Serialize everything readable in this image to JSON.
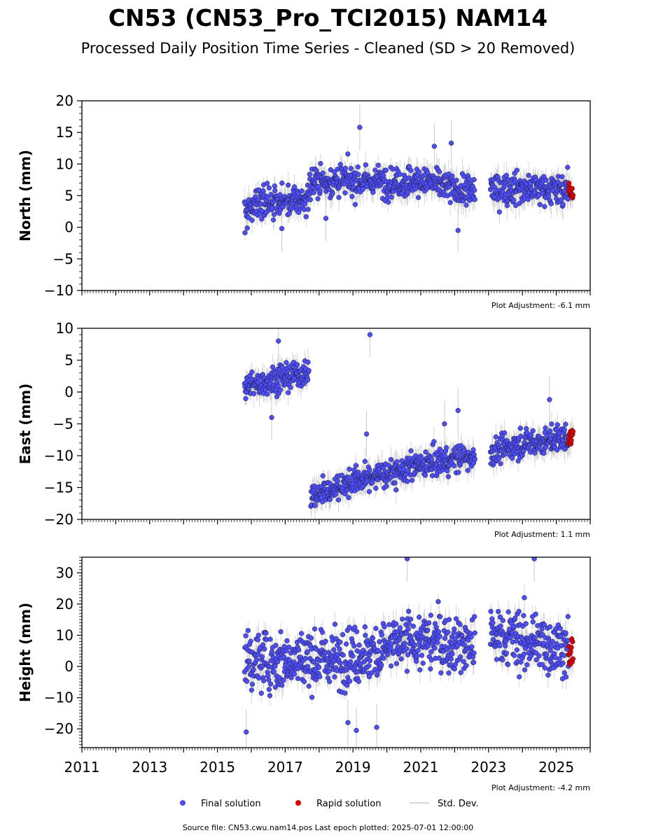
{
  "page": {
    "title": "CN53 (CN53_Pro_TCI2015) NAM14",
    "subtitle": "Processed Daily Position Time Series - Cleaned (SD > 20 Removed)",
    "source": "Source file: CN53.cwu.nam14.pos  Last epoch plotted: 2025-07-01 12:00:00"
  },
  "legend": [
    {
      "label": "Final solution",
      "color": "#4d4dff",
      "marker": "circle"
    },
    {
      "label": "Rapid solution",
      "color": "#e00000",
      "marker": "circle"
    },
    {
      "label": "Std. Dev.",
      "color": "#c8c8c8",
      "marker": "line"
    }
  ],
  "colors": {
    "final": "#4d4dff",
    "rapid": "#e00000",
    "std_dev": "#b4b4b4",
    "marker_edge": "#1a1a1a"
  },
  "chart_data": [
    {
      "type": "scatter",
      "panel": "north",
      "ylabel": "North (mm)",
      "xlim": [
        2011.0,
        2026.0
      ],
      "ylim": [
        -10,
        20
      ],
      "yticks": [
        -10,
        -5,
        0,
        5,
        10,
        15,
        20
      ],
      "adjustment": "Plot Adjustment: -6.1 mm",
      "gaps": [
        [
          2022.6,
          2023.05
        ]
      ],
      "series": [
        {
          "name": "Final solution",
          "start": 2015.8,
          "end": 2025.36,
          "trend": [
            [
              2015.8,
              1.5
            ],
            [
              2016.0,
              3.8
            ],
            [
              2016.8,
              4.0
            ],
            [
              2017.6,
              4.2
            ],
            [
              2017.8,
              7.2
            ],
            [
              2018.5,
              7.4
            ],
            [
              2019.5,
              7.3
            ],
            [
              2020.5,
              7.2
            ],
            [
              2021.0,
              7.4
            ],
            [
              2021.5,
              6.8
            ],
            [
              2022.0,
              6.0
            ],
            [
              2022.6,
              5.6
            ],
            [
              2023.1,
              6.0
            ],
            [
              2024.0,
              6.2
            ],
            [
              2025.36,
              6.0
            ]
          ],
          "scatter": 1.5
        },
        {
          "name": "Rapid solution",
          "start": 2025.36,
          "end": 2025.5,
          "trend": [
            [
              2025.36,
              6.0
            ],
            [
              2025.5,
              6.0
            ]
          ],
          "scatter": 1.2
        }
      ],
      "outliers": [
        [
          2021.9,
          13.3
        ],
        [
          2022.1,
          -0.5
        ],
        [
          2018.2,
          1.4
        ],
        [
          2019.2,
          15.8
        ],
        [
          2016.9,
          -0.2
        ],
        [
          2021.4,
          12.8
        ]
      ]
    },
    {
      "type": "scatter",
      "panel": "east",
      "ylabel": "East (mm)",
      "xlim": [
        2011.0,
        2026.0
      ],
      "ylim": [
        -20,
        10
      ],
      "yticks": [
        -20,
        -15,
        -10,
        -5,
        0,
        5,
        10
      ],
      "adjustment": "Plot Adjustment: 1.1 mm",
      "gaps": [
        [
          2017.7,
          2017.75
        ],
        [
          2022.6,
          2023.05
        ]
      ],
      "series": [
        {
          "name": "Final solution",
          "start": 2015.8,
          "end": 2025.36,
          "trend": [
            [
              2015.8,
              0.5
            ],
            [
              2016.5,
              1.8
            ],
            [
              2017.7,
              3.0
            ],
            [
              2017.75,
              -16.5
            ],
            [
              2018.5,
              -15.0
            ],
            [
              2019.0,
              -14.0
            ],
            [
              2020.0,
              -12.8
            ],
            [
              2021.0,
              -11.5
            ],
            [
              2022.6,
              -10.0
            ],
            [
              2023.05,
              -9.5
            ],
            [
              2024.0,
              -8.2
            ],
            [
              2025.36,
              -7.2
            ]
          ],
          "scatter": 1.3
        },
        {
          "name": "Rapid solution",
          "start": 2025.36,
          "end": 2025.5,
          "trend": [
            [
              2025.36,
              -7.2
            ],
            [
              2025.5,
              -7.0
            ]
          ],
          "scatter": 0.8
        }
      ],
      "outliers": [
        [
          2016.6,
          -4.0
        ],
        [
          2016.8,
          8.0
        ],
        [
          2019.4,
          -6.6
        ],
        [
          2021.7,
          -5.0
        ],
        [
          2022.1,
          -2.9
        ],
        [
          2024.8,
          -1.2
        ],
        [
          2019.5,
          9.0
        ]
      ]
    },
    {
      "type": "scatter",
      "panel": "height",
      "ylabel": "Height (mm)",
      "xlim": [
        2011.0,
        2026.0
      ],
      "ylim": [
        -26,
        35
      ],
      "yticks": [
        -20,
        -10,
        0,
        10,
        20,
        30
      ],
      "adjustment": "Plot Adjustment: -4.2 mm",
      "gaps": [
        [
          2022.6,
          2023.05
        ]
      ],
      "series": [
        {
          "name": "Final solution",
          "start": 2015.8,
          "end": 2025.36,
          "trend": [
            [
              2015.8,
              2.0
            ],
            [
              2017.0,
              2.0
            ],
            [
              2018.5,
              2.5
            ],
            [
              2019.5,
              4.0
            ],
            [
              2020.5,
              8.0
            ],
            [
              2021.5,
              8.0
            ],
            [
              2022.6,
              7.0
            ],
            [
              2023.05,
              10.0
            ],
            [
              2024.0,
              8.0
            ],
            [
              2025.36,
              6.0
            ]
          ],
          "scatter": 5.8
        },
        {
          "name": "Rapid solution",
          "start": 2025.36,
          "end": 2025.5,
          "trend": [
            [
              2025.36,
              4.0
            ],
            [
              2025.5,
              3.0
            ]
          ],
          "scatter": 3.5
        }
      ],
      "outliers": [
        [
          2015.85,
          -21.0
        ],
        [
          2020.6,
          34.5
        ],
        [
          2024.35,
          34.5
        ],
        [
          2019.7,
          -19.5
        ],
        [
          2019.1,
          -20.5
        ],
        [
          2018.85,
          -18.0
        ]
      ]
    }
  ],
  "x_axis": {
    "xlim": [
      2011.0,
      2026.0
    ],
    "ticks": [
      2011,
      2013,
      2015,
      2017,
      2019,
      2021,
      2023,
      2025
    ],
    "tick_labels": [
      "2011",
      "2013",
      "2015",
      "2017",
      "2019",
      "2021",
      "2023",
      "2025"
    ]
  }
}
